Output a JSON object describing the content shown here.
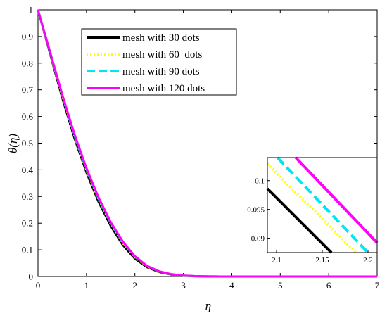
{
  "chart_data": [
    {
      "type": "line",
      "xlabel": "η",
      "ylabel": "θ(η)",
      "xlim": [
        0,
        7
      ],
      "ylim": [
        0,
        1
      ],
      "x_ticks": [
        0,
        1,
        2,
        3,
        4,
        5,
        6,
        7
      ],
      "y_ticks": [
        0,
        0.1,
        0.2,
        0.3,
        0.4,
        0.5,
        0.6,
        0.7,
        0.8,
        0.9,
        1
      ],
      "x_tick_labels": [
        "0",
        "1",
        "2",
        "3",
        "4",
        "5",
        "6",
        "7"
      ],
      "y_tick_labels": [
        "0",
        "0.1",
        "0.2",
        "0.3",
        "0.4",
        "0.5",
        "0.6",
        "0.7",
        "0.8",
        "0.9",
        "1"
      ],
      "grid": false,
      "legend_position": "top-left",
      "x": [
        0,
        0.25,
        0.5,
        0.75,
        1.0,
        1.25,
        1.5,
        1.75,
        2.0,
        2.25,
        2.5,
        2.75,
        3.0,
        3.25,
        3.5,
        3.75,
        4.0,
        4.5,
        5.0,
        5.5,
        6.0,
        6.5,
        7.0
      ],
      "series": [
        {
          "name": "mesh with 30 dots",
          "color": "#000000",
          "style": "solid",
          "values": [
            1.0,
            0.835,
            0.67,
            0.52,
            0.39,
            0.28,
            0.19,
            0.118,
            0.067,
            0.035,
            0.017,
            0.0075,
            0.003,
            0.0011,
            0.0004,
            0.00015,
            5e-05,
            0.0,
            0.0,
            0.0,
            0.0,
            0.0,
            0.0
          ]
        },
        {
          "name": "mesh with 60  dots",
          "color": "#ffff00",
          "style": "dotted",
          "values": [
            1.0,
            0.838,
            0.676,
            0.527,
            0.398,
            0.288,
            0.198,
            0.125,
            0.072,
            0.038,
            0.0185,
            0.0082,
            0.0033,
            0.0012,
            0.00045,
            0.00016,
            5e-05,
            0.0,
            0.0,
            0.0,
            0.0,
            0.0,
            0.0
          ]
        },
        {
          "name": "mesh with 90 dots",
          "color": "#00e5ee",
          "style": "dashed",
          "values": [
            1.0,
            0.84,
            0.679,
            0.531,
            0.402,
            0.292,
            0.201,
            0.128,
            0.074,
            0.039,
            0.019,
            0.0085,
            0.0034,
            0.0013,
            0.00046,
            0.00016,
            5e-05,
            0.0,
            0.0,
            0.0,
            0.0,
            0.0,
            0.0
          ]
        },
        {
          "name": "mesh with 120 dots",
          "color": "#ff00ff",
          "style": "solid",
          "values": [
            1.0,
            0.842,
            0.682,
            0.535,
            0.406,
            0.296,
            0.204,
            0.131,
            0.076,
            0.04,
            0.0195,
            0.0088,
            0.0035,
            0.0013,
            0.00047,
            0.00016,
            5e-05,
            0.0,
            0.0,
            0.0,
            0.0,
            0.0,
            0.0
          ]
        }
      ]
    },
    {
      "type": "line",
      "xlim": [
        2.09,
        2.21
      ],
      "ylim": [
        0.0875,
        0.104
      ],
      "x_ticks": [
        2.1,
        2.15,
        2.2
      ],
      "y_ticks": [
        0.09,
        0.095,
        0.1
      ],
      "x_tick_labels": [
        "2.1",
        "2.15",
        "2.2"
      ],
      "y_tick_labels": [
        "0.09",
        "0.095",
        "0.1"
      ],
      "series": [
        {
          "color": "#000000",
          "style": "solid",
          "x": [
            2.09,
            2.16
          ],
          "values": [
            0.0986,
            0.0875
          ]
        },
        {
          "color": "#ffff00",
          "style": "dotted",
          "x": [
            2.09,
            2.187
          ],
          "values": [
            0.1029,
            0.0875
          ]
        },
        {
          "color": "#00e5ee",
          "style": "dashed",
          "x": [
            2.101,
            2.2
          ],
          "values": [
            0.104,
            0.0875
          ]
        },
        {
          "color": "#ff00ff",
          "style": "solid",
          "x": [
            2.121,
            2.21
          ],
          "values": [
            0.104,
            0.0892
          ]
        }
      ]
    }
  ]
}
